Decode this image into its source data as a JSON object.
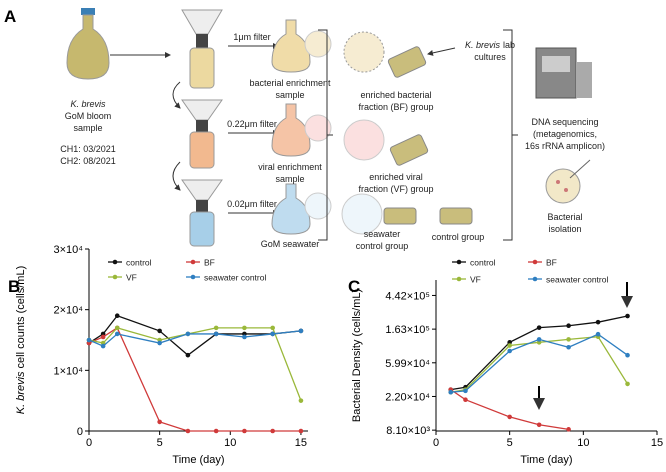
{
  "panel_a": {
    "label": "A",
    "sample": {
      "species": "K. brevis",
      "lines": [
        "GoM bloom",
        "sample"
      ],
      "collections": [
        "CH1: 03/2021",
        "CH2: 08/2021"
      ]
    },
    "filters": [
      "1μm filter",
      "0.22μm filter",
      "0.02μm filter"
    ],
    "enrichments": [
      [
        "bacterial enrichment",
        "sample"
      ],
      [
        "viral enrichment",
        "sample"
      ],
      [
        "GoM seawater"
      ]
    ],
    "lab_cultures": {
      "species": "K. brevis",
      "lines": [
        "lab",
        "cultures"
      ]
    },
    "groups": [
      [
        "enriched bacterial",
        "fraction (BF) group"
      ],
      [
        "enriched viral",
        "fraction (VF) group"
      ],
      [
        "seawater",
        "control group"
      ],
      [
        "control group"
      ]
    ],
    "analyses": [
      [
        "DNA sequencing",
        "(metagenomics,",
        "16s rRNA amplicon)"
      ],
      [
        "Bacterial",
        "isolation"
      ]
    ]
  },
  "chart_data": [
    {
      "type": "line",
      "panel_label": "B",
      "y_label_species": "K. brevis",
      "y_label": "cell counts (cells/mL)",
      "x_label": "Time (day)",
      "x": [
        0,
        1,
        2,
        5,
        7,
        9,
        11,
        13,
        15
      ],
      "xlim": [
        0,
        15.5
      ],
      "xticks": [
        0,
        5,
        10,
        15
      ],
      "ylim": [
        0,
        30000
      ],
      "yticks": [
        0,
        {
          "value": 10000,
          "label": "1×10⁴"
        },
        {
          "value": 20000,
          "label": "2×10⁴"
        },
        {
          "value": 30000,
          "label": "3×10⁴"
        }
      ],
      "legend": "top",
      "series": [
        {
          "name": "control",
          "color": "#111111",
          "values": [
            14500,
            16000,
            19000,
            16500,
            12500,
            16000,
            16000,
            16000,
            16500
          ]
        },
        {
          "name": "BF",
          "color": "#d03a3a",
          "values": [
            14500,
            15500,
            17000,
            1500,
            0,
            0,
            0,
            0,
            0
          ]
        },
        {
          "name": "VF",
          "color": "#9ab83a",
          "values": [
            15000,
            14500,
            17000,
            15000,
            16000,
            17000,
            17000,
            17000,
            5000
          ]
        },
        {
          "name": "seawater control",
          "color": "#2f7fc1",
          "values": [
            15000,
            14000,
            16000,
            14500,
            16000,
            16000,
            15500,
            16000,
            16500
          ]
        }
      ]
    },
    {
      "type": "line",
      "panel_label": "C",
      "y_label": "Bacterial Density (cells/mL)",
      "x_label": "Time (day)",
      "x": [
        1,
        2,
        5,
        7,
        9,
        11,
        13
      ],
      "xlim": [
        0,
        15
      ],
      "xticks": [
        0,
        5,
        10,
        15
      ],
      "ylog": true,
      "ylim": [
        7900,
        700000
      ],
      "yticks": [
        {
          "value": 8103.08,
          "label": "8.10×10³"
        },
        {
          "value": 22026.47,
          "label": "2.20×10⁴"
        },
        {
          "value": 59874.14,
          "label": "5.99×10⁴"
        },
        {
          "value": 162754.79,
          "label": "1.63×10⁵"
        },
        {
          "value": 442413.39,
          "label": "4.42×10⁵"
        }
      ],
      "legend": "top",
      "series": [
        {
          "name": "control",
          "color": "#111111",
          "values": [
            27000,
            29000,
            110000,
            170000,
            180000,
            200000,
            240000
          ]
        },
        {
          "name": "BF",
          "color": "#d03a3a",
          "values": [
            27000,
            20000,
            12000,
            9500,
            8300,
            null,
            null
          ]
        },
        {
          "name": "VF",
          "color": "#9ab83a",
          "values": [
            25000,
            27000,
            100000,
            110000,
            120000,
            130000,
            32000
          ]
        },
        {
          "name": "seawater control",
          "color": "#2f7fc1",
          "values": [
            25000,
            26000,
            85000,
            120000,
            95000,
            140000,
            75000
          ]
        }
      ]
    }
  ]
}
